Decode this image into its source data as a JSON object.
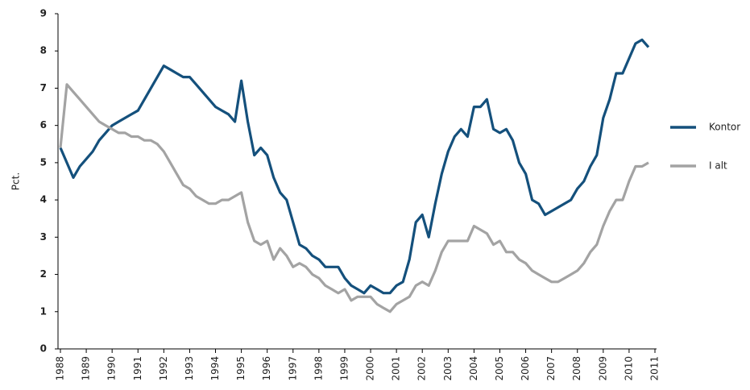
{
  "chart_data": {
    "type": "line",
    "y_label": "Pct.",
    "categories": [
      "1988",
      null,
      null,
      null,
      "1989",
      null,
      null,
      null,
      "1990",
      null,
      null,
      null,
      "1991",
      null,
      null,
      null,
      "1992",
      null,
      null,
      null,
      "1993",
      null,
      null,
      null,
      "1994",
      null,
      null,
      null,
      "1995",
      null,
      null,
      null,
      "1996",
      null,
      null,
      null,
      "1997",
      null,
      null,
      null,
      "1998",
      null,
      null,
      null,
      "1999",
      null,
      null,
      null,
      "2000",
      null,
      null,
      null,
      "2001",
      null,
      null,
      null,
      "2002",
      null,
      null,
      null,
      "2003",
      null,
      null,
      null,
      "2004",
      null,
      null,
      null,
      "2005",
      null,
      null,
      null,
      "2006",
      null,
      null,
      null,
      "2007",
      null,
      null,
      null,
      "2008",
      null,
      null,
      null,
      "2009",
      null,
      null,
      null,
      "2010",
      null,
      null,
      null,
      "2011"
    ],
    "series": [
      {
        "name": "Kontor",
        "color": "#14507c",
        "values": [
          5.4,
          5.0,
          4.6,
          4.9,
          5.1,
          5.3,
          5.6,
          5.8,
          6.0,
          6.1,
          6.2,
          6.3,
          6.4,
          6.7,
          7.0,
          7.3,
          7.6,
          7.5,
          7.4,
          7.3,
          7.3,
          7.1,
          6.9,
          6.7,
          6.5,
          6.4,
          6.3,
          6.1,
          7.2,
          6.1,
          5.2,
          5.4,
          5.2,
          4.6,
          4.2,
          4.0,
          3.4,
          2.8,
          2.7,
          2.5,
          2.4,
          2.2,
          2.2,
          2.2,
          1.9,
          1.7,
          1.6,
          1.5,
          1.7,
          1.6,
          1.5,
          1.5,
          1.7,
          1.8,
          2.4,
          3.4,
          3.6,
          3.0,
          3.9,
          4.7,
          5.3,
          5.7,
          5.9,
          5.7,
          6.5,
          6.5,
          6.7,
          5.9,
          5.8,
          5.9,
          5.6,
          5.0,
          4.7,
          4.0,
          3.9,
          3.6,
          3.7,
          3.8,
          3.9,
          4.0,
          4.3,
          4.5,
          4.9,
          5.2,
          6.2,
          6.7,
          7.4,
          7.4,
          7.8,
          8.2,
          8.3,
          8.1,
          null
        ]
      },
      {
        "name": "I alt",
        "color": "#a3a3a3",
        "values": [
          5.4,
          7.1,
          6.9,
          6.7,
          6.5,
          6.3,
          6.1,
          6.0,
          5.9,
          5.8,
          5.8,
          5.7,
          5.7,
          5.6,
          5.6,
          5.5,
          5.3,
          5.0,
          4.7,
          4.4,
          4.3,
          4.1,
          4.0,
          3.9,
          3.9,
          4.0,
          4.0,
          4.1,
          4.2,
          3.4,
          2.9,
          2.8,
          2.9,
          2.4,
          2.7,
          2.5,
          2.2,
          2.3,
          2.2,
          2.0,
          1.9,
          1.7,
          1.6,
          1.5,
          1.6,
          1.3,
          1.4,
          1.4,
          1.4,
          1.2,
          1.1,
          1.0,
          1.2,
          1.3,
          1.4,
          1.7,
          1.8,
          1.7,
          2.1,
          2.6,
          2.9,
          2.9,
          2.9,
          2.9,
          3.3,
          3.2,
          3.1,
          2.8,
          2.9,
          2.6,
          2.6,
          2.4,
          2.3,
          2.1,
          2.0,
          1.9,
          1.8,
          1.8,
          1.9,
          2.0,
          2.1,
          2.3,
          2.6,
          2.8,
          3.3,
          3.7,
          4.0,
          4.0,
          4.5,
          4.9,
          4.9,
          5.0,
          null
        ]
      }
    ],
    "ylim": [
      0,
      9
    ],
    "yticks": [
      0,
      1,
      2,
      3,
      4,
      5,
      6,
      7,
      8,
      9
    ],
    "grid": false,
    "legend": "right"
  }
}
